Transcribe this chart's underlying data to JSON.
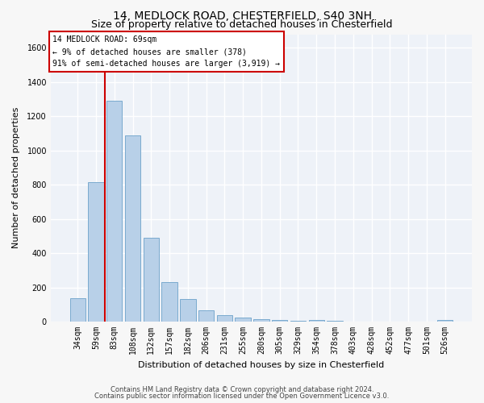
{
  "title1": "14, MEDLOCK ROAD, CHESTERFIELD, S40 3NH",
  "title2": "Size of property relative to detached houses in Chesterfield",
  "xlabel": "Distribution of detached houses by size in Chesterfield",
  "ylabel": "Number of detached properties",
  "footer1": "Contains HM Land Registry data © Crown copyright and database right 2024.",
  "footer2": "Contains public sector information licensed under the Open Government Licence v3.0.",
  "annotation_line1": "14 MEDLOCK ROAD: 69sqm",
  "annotation_line2": "← 9% of detached houses are smaller (378)",
  "annotation_line3": "91% of semi-detached houses are larger (3,919) →",
  "bar_color": "#b8d0e8",
  "bar_edge_color": "#7aaace",
  "vline_color": "#cc0000",
  "annotation_box_edge": "#cc0000",
  "fig_bg_color": "#f7f7f7",
  "plot_bg_color": "#eef2f8",
  "grid_color": "#ffffff",
  "categories": [
    "34sqm",
    "59sqm",
    "83sqm",
    "108sqm",
    "132sqm",
    "157sqm",
    "182sqm",
    "206sqm",
    "231sqm",
    "255sqm",
    "280sqm",
    "305sqm",
    "329sqm",
    "354sqm",
    "378sqm",
    "403sqm",
    "428sqm",
    "452sqm",
    "477sqm",
    "501sqm",
    "526sqm"
  ],
  "values": [
    135,
    815,
    1290,
    1090,
    490,
    230,
    130,
    65,
    38,
    25,
    15,
    8,
    4,
    12,
    3,
    2,
    2,
    2,
    2,
    2,
    12
  ],
  "vline_x": 1.5,
  "ylim": [
    0,
    1680
  ],
  "yticks": [
    0,
    200,
    400,
    600,
    800,
    1000,
    1200,
    1400,
    1600
  ],
  "title1_fontsize": 10,
  "title2_fontsize": 9,
  "ylabel_fontsize": 8,
  "xlabel_fontsize": 8,
  "tick_fontsize": 7,
  "annotation_fontsize": 7,
  "footer_fontsize": 6
}
